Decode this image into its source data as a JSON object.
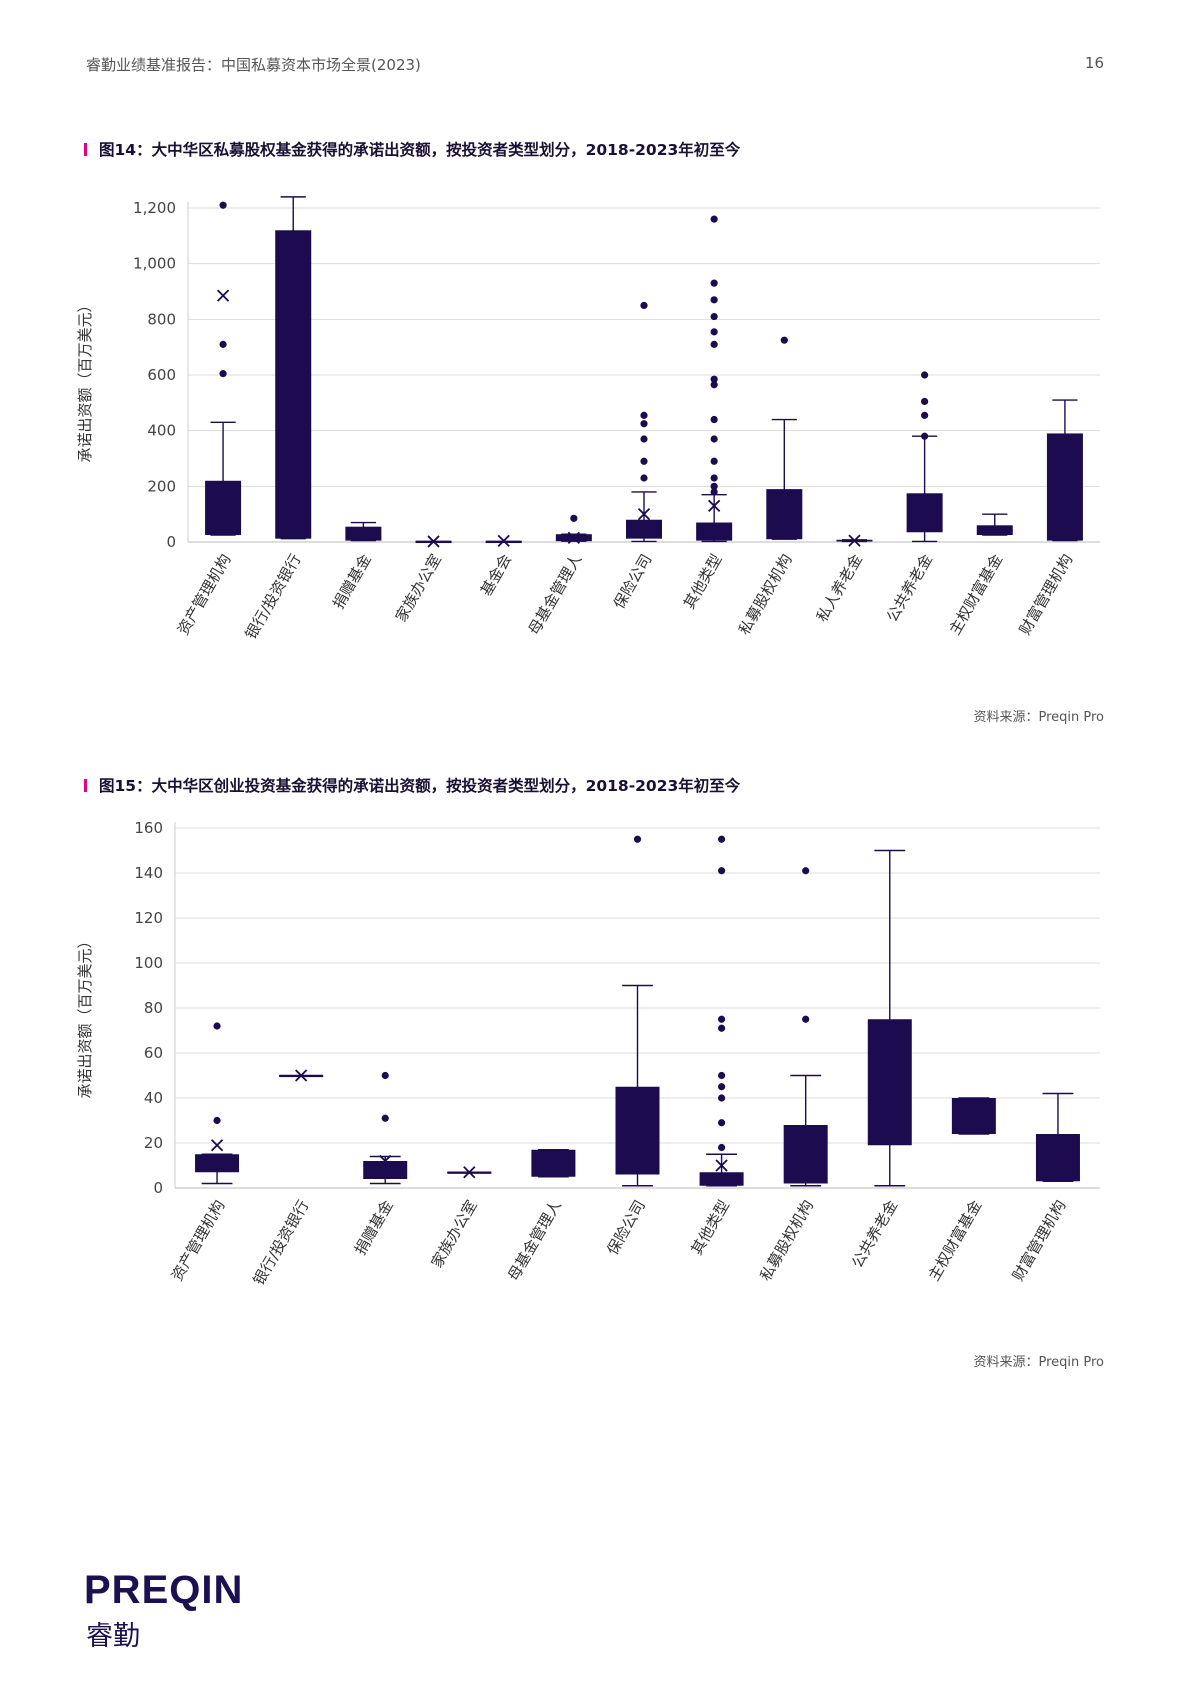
{
  "header": {
    "title": "睿勤业绩基准报告：中国私募资本市场全景(2023)",
    "page_number": "16"
  },
  "colors": {
    "box": "#1d0b50",
    "grid": "#dddddd",
    "accent": "#e6007e"
  },
  "figures": [
    {
      "title": "图14：大中华区私募股权基金获得的承诺出资额，按投资者类型划分，2018-2023年初至今",
      "source": "资料来源：Preqin Pro"
    },
    {
      "title": "图15：大中华区创业投资基金获得的承诺出资额，按投资者类型划分，2018-2023年初至今",
      "source": "资料来源：Preqin Pro"
    }
  ],
  "chart_data": [
    {
      "type": "box",
      "ylabel": "承诺出资额（百万美元）",
      "ylim": [
        0,
        1200
      ],
      "yticks": [
        0,
        200,
        400,
        600,
        800,
        1000,
        1200
      ],
      "ytick_labels": [
        "0",
        "200",
        "400",
        "600",
        "800",
        "1,000",
        "1,200"
      ],
      "grid": true,
      "categories": [
        "资产管理机构",
        "银行/投资银行",
        "捐赠基金",
        "家族办公室",
        "基金会",
        "母基金管理人",
        "保险公司",
        "其他类型",
        "私募股权机构",
        "私人养老金",
        "公共养老金",
        "主权财富基金",
        "财富管理机构"
      ],
      "boxes": [
        {
          "q1": 25,
          "q3": 220,
          "whisker_low": 25,
          "whisker_high": 430,
          "mean": 885,
          "outliers": [
            1210,
            710,
            605
          ]
        },
        {
          "q1": 12,
          "q3": 1120,
          "whisker_low": 12,
          "whisker_high": 1240,
          "mean": null,
          "outliers": []
        },
        {
          "q1": 5,
          "q3": 55,
          "whisker_low": 5,
          "whisker_high": 70,
          "mean": null,
          "outliers": []
        },
        {
          "q1": 2,
          "q3": 2,
          "whisker_low": 2,
          "whisker_high": 2,
          "mean": 2,
          "outliers": []
        },
        {
          "q1": 2,
          "q3": 2,
          "whisker_low": 2,
          "whisker_high": 2,
          "mean": 4,
          "outliers": []
        },
        {
          "q1": 3,
          "q3": 28,
          "whisker_low": 3,
          "whisker_high": 28,
          "mean": 15,
          "outliers": [
            85
          ]
        },
        {
          "q1": 12,
          "q3": 80,
          "whisker_low": 2,
          "whisker_high": 180,
          "mean": 100,
          "outliers": [
            850,
            455,
            425,
            370,
            290,
            230
          ]
        },
        {
          "q1": 5,
          "q3": 70,
          "whisker_low": 2,
          "whisker_high": 170,
          "mean": 130,
          "outliers": [
            1160,
            930,
            870,
            810,
            755,
            710,
            585,
            565,
            440,
            370,
            290,
            230,
            200,
            180
          ]
        },
        {
          "q1": 10,
          "q3": 190,
          "whisker_low": 10,
          "whisker_high": 440,
          "mean": null,
          "outliers": [
            725
          ]
        },
        {
          "q1": 2,
          "q3": 8,
          "whisker_low": 2,
          "whisker_high": 8,
          "mean": 5,
          "outliers": []
        },
        {
          "q1": 35,
          "q3": 175,
          "whisker_low": 2,
          "whisker_high": 380,
          "mean": null,
          "outliers": [
            600,
            505,
            455,
            380
          ]
        },
        {
          "q1": 25,
          "q3": 60,
          "whisker_low": 25,
          "whisker_high": 100,
          "mean": null,
          "outliers": []
        },
        {
          "q1": 5,
          "q3": 390,
          "whisker_low": 5,
          "whisker_high": 510,
          "mean": null,
          "outliers": []
        }
      ]
    },
    {
      "type": "box",
      "ylabel": "承诺出资额（百万美元）",
      "ylim": [
        0,
        160
      ],
      "yticks": [
        0,
        20,
        40,
        60,
        80,
        100,
        120,
        140,
        160
      ],
      "ytick_labels": [
        "0",
        "20",
        "40",
        "60",
        "80",
        "100",
        "120",
        "140",
        "160"
      ],
      "grid": true,
      "categories": [
        "资产管理机构",
        "银行/投资银行",
        "捐赠基金",
        "家族办公室",
        "母基金管理人",
        "保险公司",
        "其他类型",
        "私募股权机构",
        "公共养老金",
        "主权财富基金",
        "财富管理机构"
      ],
      "boxes": [
        {
          "q1": 7,
          "q3": 15,
          "whisker_low": 2,
          "whisker_high": 15,
          "mean": 19,
          "outliers": [
            72,
            30
          ]
        },
        {
          "q1": 50,
          "q3": 50,
          "whisker_low": 50,
          "whisker_high": 50,
          "mean": 50,
          "outliers": []
        },
        {
          "q1": 4,
          "q3": 12,
          "whisker_low": 2,
          "whisker_high": 14,
          "mean": 12,
          "outliers": [
            50,
            31
          ]
        },
        {
          "q1": 7,
          "q3": 7,
          "whisker_low": 7,
          "whisker_high": 7,
          "mean": 7,
          "outliers": []
        },
        {
          "q1": 5,
          "q3": 17,
          "whisker_low": 5,
          "whisker_high": 17,
          "mean": null,
          "outliers": []
        },
        {
          "q1": 6,
          "q3": 45,
          "whisker_low": 1,
          "whisker_high": 90,
          "mean": null,
          "outliers": [
            155
          ]
        },
        {
          "q1": 1,
          "q3": 7,
          "whisker_low": 1,
          "whisker_high": 15,
          "mean": 10,
          "outliers": [
            155,
            141,
            75,
            71,
            50,
            45,
            40,
            29,
            18
          ]
        },
        {
          "q1": 2,
          "q3": 28,
          "whisker_low": 1,
          "whisker_high": 50,
          "mean": null,
          "outliers": [
            141,
            75
          ]
        },
        {
          "q1": 19,
          "q3": 75,
          "whisker_low": 1,
          "whisker_high": 150,
          "mean": null,
          "outliers": []
        },
        {
          "q1": 24,
          "q3": 40,
          "whisker_low": 24,
          "whisker_high": 40,
          "mean": null,
          "outliers": []
        },
        {
          "q1": 3,
          "q3": 24,
          "whisker_low": 3,
          "whisker_high": 42,
          "mean": null,
          "outliers": []
        }
      ]
    }
  ],
  "logo": {
    "en": "PREQIN",
    "cn": "睿勤"
  }
}
